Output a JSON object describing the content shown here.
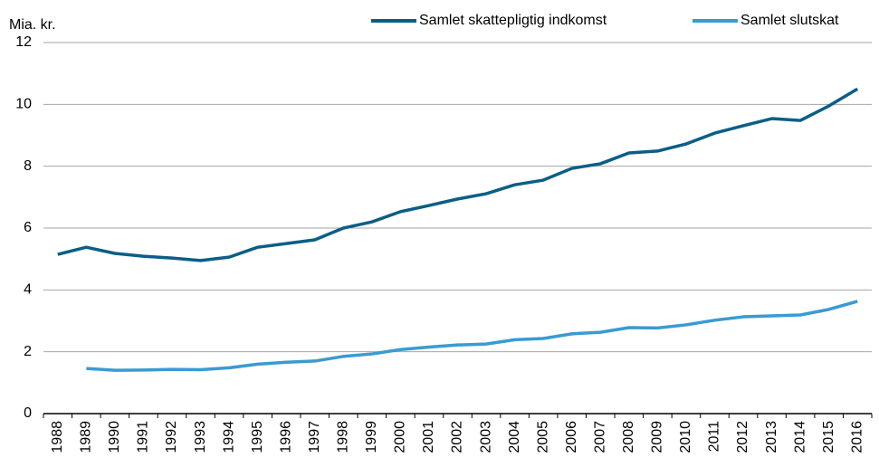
{
  "chart_data": {
    "type": "line",
    "y_label": "Mia. kr.",
    "categories": [
      "1988",
      "1989",
      "1990",
      "1991",
      "1992",
      "1993",
      "1994",
      "1995",
      "1996",
      "1997",
      "1998",
      "1999",
      "2000",
      "2001",
      "2002",
      "2003",
      "2004",
      "2005",
      "2006",
      "2007",
      "2008",
      "2009",
      "2010",
      "2011",
      "2012",
      "2013",
      "2014",
      "2015",
      "2016"
    ],
    "series": [
      {
        "name": "Samlet skattepligtig indkomst",
        "color": "#0b5e86",
        "values": [
          5.15,
          5.38,
          5.18,
          5.09,
          5.03,
          4.95,
          5.06,
          5.38,
          5.5,
          5.62,
          6.0,
          6.2,
          6.53,
          6.73,
          6.94,
          7.11,
          7.4,
          7.55,
          7.93,
          8.08,
          8.43,
          8.49,
          8.72,
          9.07,
          9.31,
          9.54,
          9.48,
          9.95,
          10.5
        ]
      },
      {
        "name": "Samlet slutskat",
        "color": "#3a9bd1",
        "values": [
          null,
          1.46,
          1.4,
          1.41,
          1.43,
          1.42,
          1.48,
          1.6,
          1.66,
          1.7,
          1.85,
          1.93,
          2.07,
          2.15,
          2.22,
          2.25,
          2.39,
          2.43,
          2.58,
          2.63,
          2.78,
          2.77,
          2.87,
          3.02,
          3.13,
          3.16,
          3.19,
          3.37,
          3.63
        ]
      }
    ],
    "ylim": [
      0,
      12
    ],
    "yticks": [
      0,
      2,
      4,
      6,
      8,
      10,
      12
    ],
    "grid": true,
    "legend": "top-right"
  }
}
